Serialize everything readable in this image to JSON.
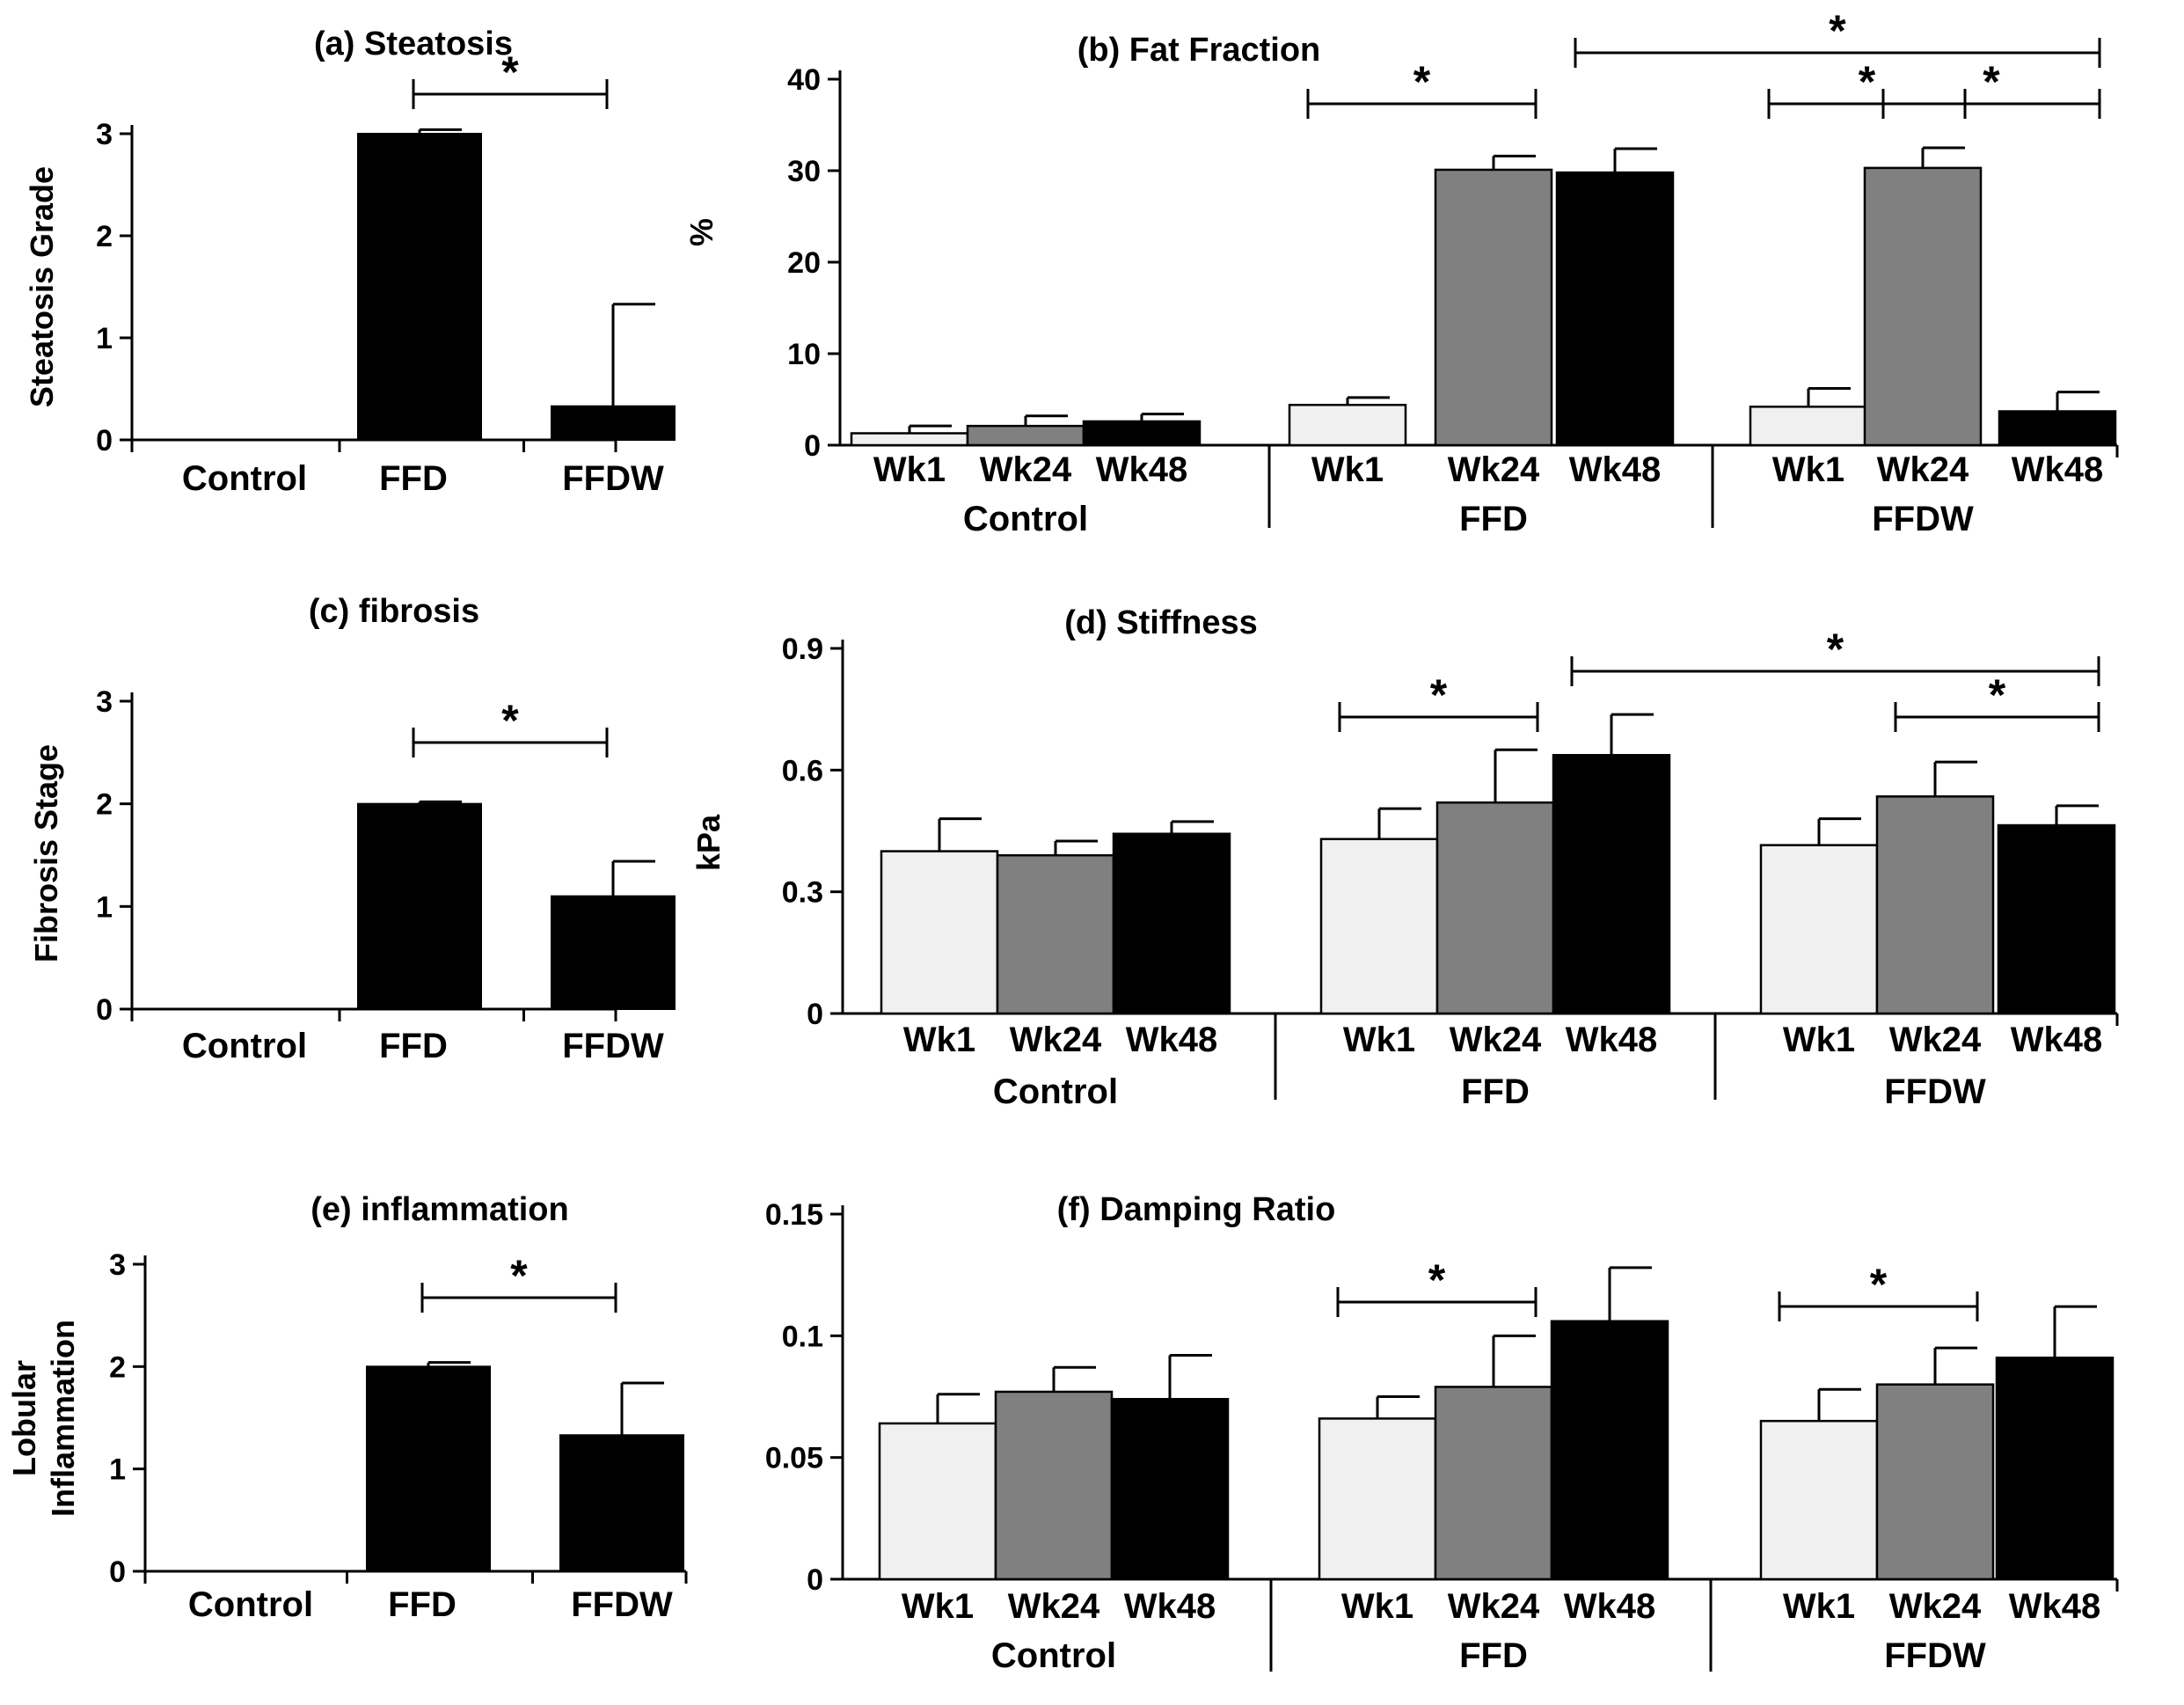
{
  "chart_data": [
    {
      "id": "a",
      "type": "bar",
      "title": "(a) Steatosis",
      "ylabel": "Steatosis Grade",
      "ylim": [
        0,
        3
      ],
      "yticks": [
        "0",
        "1",
        "2",
        "3"
      ],
      "categories": [
        "Control",
        "FFD",
        "FFDW"
      ],
      "values": [
        0,
        3.0,
        0.33
      ],
      "errors": [
        0,
        0.04,
        1.0
      ],
      "bar_color": "#000000",
      "significance": [
        {
          "from": 1,
          "to": 2,
          "label": "*"
        }
      ]
    },
    {
      "id": "b",
      "type": "bar",
      "title": "(b) Fat Fraction",
      "ylabel": "%",
      "ylim": [
        0,
        40
      ],
      "yticks": [
        "0",
        "10",
        "20",
        "30",
        "40"
      ],
      "groups": [
        "Control",
        "FFD",
        "FFDW"
      ],
      "subcategories": [
        "Wk1",
        "Wk24",
        "Wk48"
      ],
      "series": [
        {
          "key": "Wk1",
          "color": "#f0f0f0",
          "values": [
            1.3,
            4.4,
            4.2
          ],
          "errors": [
            0.8,
            0.8,
            2.0
          ]
        },
        {
          "key": "Wk24",
          "color": "#808080",
          "values": [
            2.1,
            30.1,
            30.3
          ],
          "errors": [
            1.1,
            1.5,
            2.2
          ]
        },
        {
          "key": "Wk48",
          "color": "#000000",
          "values": [
            2.6,
            29.8,
            3.7
          ],
          "errors": [
            0.8,
            2.6,
            2.1
          ]
        }
      ],
      "significance": [
        {
          "from": [
            1,
            0
          ],
          "to": [
            1,
            1
          ],
          "label": "*"
        },
        {
          "from": [
            1,
            2
          ],
          "to": [
            2,
            2
          ],
          "label": "*"
        },
        {
          "from": [
            2,
            0
          ],
          "to": [
            2,
            1
          ],
          "label": "*"
        },
        {
          "from": [
            2,
            1
          ],
          "to": [
            2,
            2
          ],
          "label": "*"
        }
      ]
    },
    {
      "id": "c",
      "type": "bar",
      "title": "(c) fibrosis",
      "ylabel": "Fibrosis Stage",
      "ylim": [
        0,
        3
      ],
      "yticks": [
        "0",
        "1",
        "2",
        "3"
      ],
      "categories": [
        "Control",
        "FFD",
        "FFDW"
      ],
      "values": [
        0,
        2.0,
        1.1
      ],
      "errors": [
        0,
        0.02,
        0.34
      ],
      "bar_color": "#000000",
      "significance": [
        {
          "from": 1,
          "to": 2,
          "label": "*"
        }
      ]
    },
    {
      "id": "d",
      "type": "bar",
      "title": "(d) Stiffness",
      "ylabel": "kPa",
      "ylim": [
        0,
        0.9
      ],
      "yticks": [
        "0",
        "0.3",
        "0.6",
        "0.9"
      ],
      "groups": [
        "Control",
        "FFD",
        "FFDW"
      ],
      "subcategories": [
        "Wk1",
        "Wk24",
        "Wk48"
      ],
      "series": [
        {
          "key": "Wk1",
          "color": "#f0f0f0",
          "values": [
            0.4,
            0.43,
            0.415
          ],
          "errors": [
            0.08,
            0.075,
            0.065
          ]
        },
        {
          "key": "Wk24",
          "color": "#808080",
          "values": [
            0.39,
            0.52,
            0.535
          ],
          "errors": [
            0.035,
            0.13,
            0.085
          ]
        },
        {
          "key": "Wk48",
          "color": "#000000",
          "values": [
            0.443,
            0.637,
            0.464
          ],
          "errors": [
            0.03,
            0.1,
            0.048
          ]
        }
      ],
      "significance": [
        {
          "from": [
            1,
            0
          ],
          "to": [
            1,
            1
          ],
          "label": "*"
        },
        {
          "from": [
            1,
            2
          ],
          "to": [
            2,
            2
          ],
          "label": "*"
        },
        {
          "from": [
            2,
            1
          ],
          "to": [
            2,
            2
          ],
          "label": "*"
        }
      ]
    },
    {
      "id": "e",
      "type": "bar",
      "title": "(e) inflammation",
      "ylabel": "Lobular Inflammation",
      "ylabel_lines": [
        "Lobular",
        "Inflammation"
      ],
      "ylim": [
        0,
        3
      ],
      "yticks": [
        "0",
        "1",
        "2",
        "3"
      ],
      "categories": [
        "Control",
        "FFD",
        "FFDW"
      ],
      "values": [
        0,
        2.0,
        1.33
      ],
      "errors": [
        0,
        0.04,
        0.51
      ],
      "bar_color": "#000000",
      "significance": [
        {
          "from": 1,
          "to": 2,
          "label": "*"
        }
      ]
    },
    {
      "id": "f",
      "type": "bar",
      "title": "(f) Damping Ratio",
      "ylabel": "",
      "ylim": [
        0,
        0.15
      ],
      "yticks": [
        "0",
        "0.05",
        "0.1",
        "0.15"
      ],
      "groups": [
        "Control",
        "FFD",
        "FFDW"
      ],
      "subcategories": [
        "Wk1",
        "Wk24",
        "Wk48"
      ],
      "series": [
        {
          "key": "Wk1",
          "color": "#f0f0f0",
          "values": [
            0.064,
            0.066,
            0.065
          ],
          "errors": [
            0.012,
            0.009,
            0.013
          ]
        },
        {
          "key": "Wk24",
          "color": "#808080",
          "values": [
            0.077,
            0.079,
            0.08
          ],
          "errors": [
            0.01,
            0.021,
            0.015
          ]
        },
        {
          "key": "Wk48",
          "color": "#000000",
          "values": [
            0.074,
            0.106,
            0.091
          ],
          "errors": [
            0.018,
            0.022,
            0.021
          ]
        }
      ],
      "significance": [
        {
          "from": [
            1,
            0
          ],
          "to": [
            1,
            1
          ],
          "label": "*"
        },
        {
          "from": [
            2,
            0
          ],
          "to": [
            2,
            1
          ],
          "label": "*"
        }
      ]
    }
  ]
}
